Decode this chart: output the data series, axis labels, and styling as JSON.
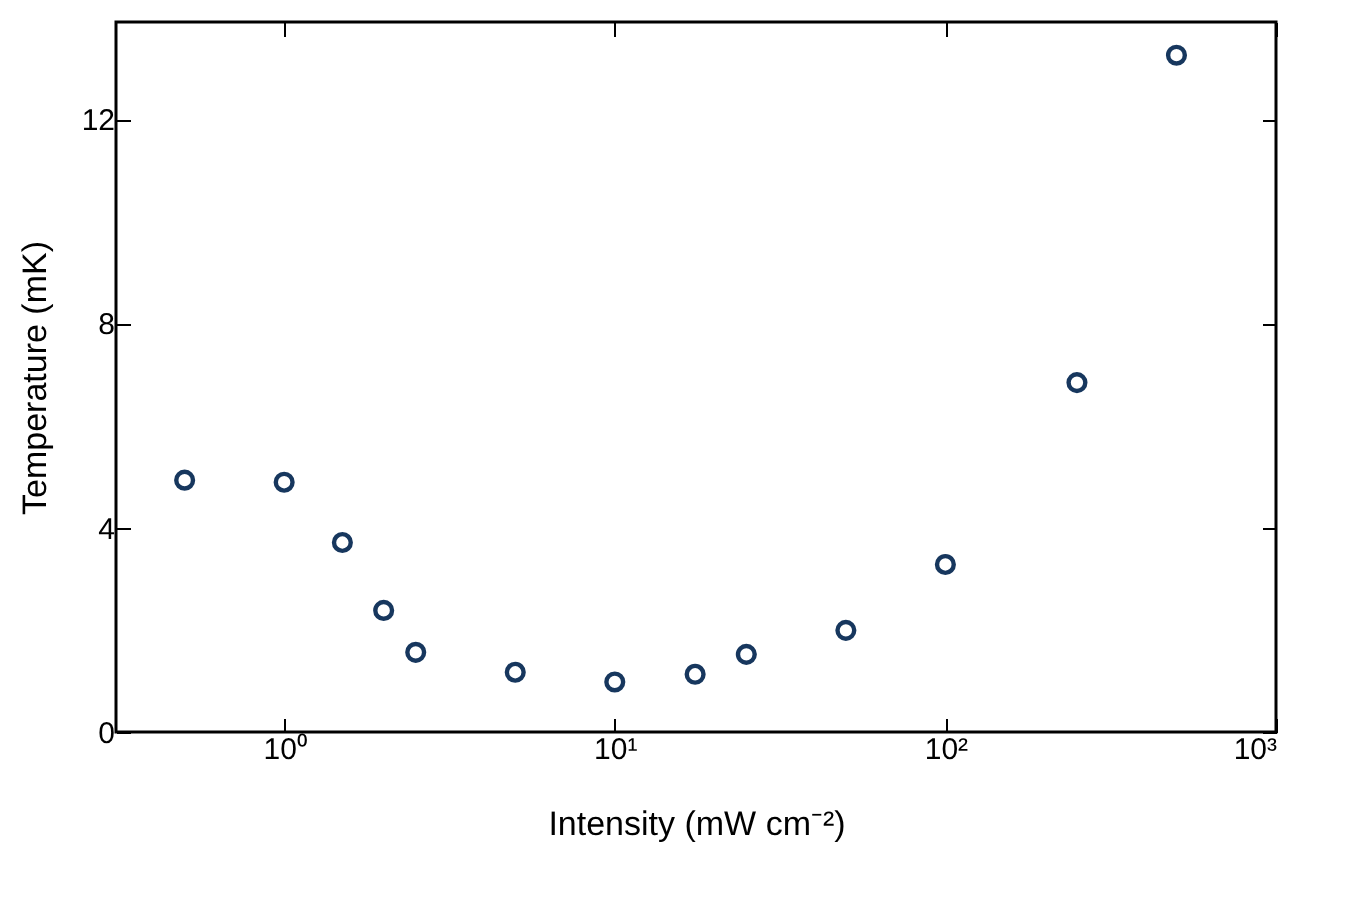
{
  "chart_data": {
    "type": "scatter",
    "xlabel": "Intensity (mW cm⁻²)",
    "ylabel": "Temperature (mK)",
    "log": "x",
    "x": [
      0.5,
      1,
      1.5,
      2,
      2.5,
      5,
      10,
      17.5,
      25,
      50,
      100,
      250,
      500
    ],
    "series": [
      {
        "color": "#17375e",
        "values": [
          4.93,
          4.89,
          3.71,
          2.38,
          1.56,
          1.17,
          0.98,
          1.13,
          1.52,
          1.99,
          3.28,
          6.84,
          13.25
        ]
      }
    ],
    "xlim": [
      0.31,
      1000
    ],
    "xticks": [
      {
        "value": 1,
        "label": "10⁰"
      },
      {
        "value": 10,
        "label": "10¹"
      },
      {
        "value": 100,
        "label": "10²"
      },
      {
        "value": 1000,
        "label": "10³"
      }
    ],
    "ylim": [
      0,
      13.9
    ],
    "yticks": [
      0,
      4,
      8,
      12
    ],
    "marker": "circle",
    "grid": false
  }
}
